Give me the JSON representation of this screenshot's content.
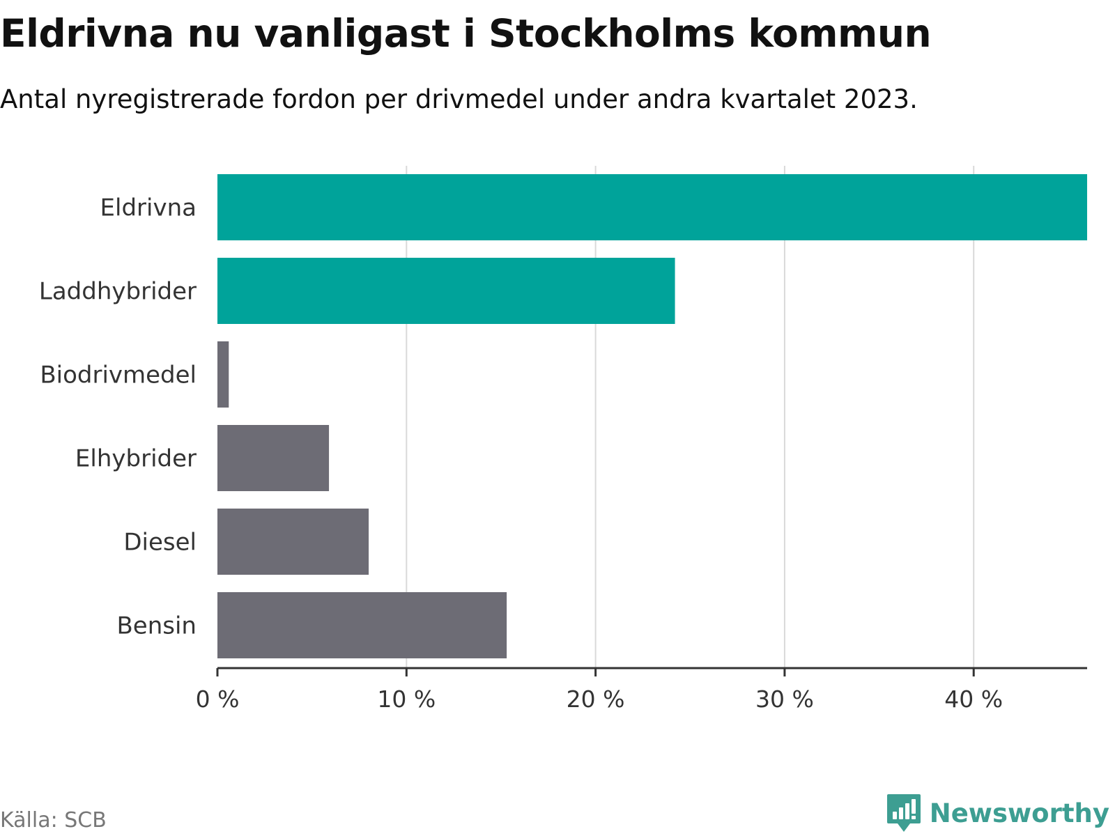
{
  "header": {
    "title": "Eldrivna nu vanligast i Stockholms kommun",
    "subtitle": "Antal nyregistrerade fordon per drivmedel under andra kvartalet 2023."
  },
  "footer": {
    "source": "Källa: SCB",
    "brand": "Newsworthy",
    "brand_icon": "newsworthy-logo-icon"
  },
  "colors": {
    "highlight": "#00a39a",
    "default": "#6d6c75",
    "gridline": "#d9d9d9",
    "axis": "#333333",
    "brand": "#3d9e92"
  },
  "chart_data": {
    "type": "bar",
    "orientation": "horizontal",
    "title": "Eldrivna nu vanligast i Stockholms kommun",
    "subtitle": "Antal nyregistrerade fordon per drivmedel under andra kvartalet 2023.",
    "xlabel": "",
    "ylabel": "",
    "unit": "%",
    "categories": [
      "Eldrivna",
      "Laddhybrider",
      "Biodrivmedel",
      "Elhybrider",
      "Diesel",
      "Bensin"
    ],
    "values": [
      46.0,
      24.2,
      0.6,
      5.9,
      8.0,
      15.3
    ],
    "highlighted": [
      true,
      true,
      false,
      false,
      false,
      false
    ],
    "xlim": [
      0,
      46
    ],
    "xticks": [
      0,
      10,
      20,
      30,
      40
    ],
    "xtick_labels": [
      "0 %",
      "10 %",
      "20 %",
      "30 %",
      "40 %"
    ],
    "grid": true
  }
}
